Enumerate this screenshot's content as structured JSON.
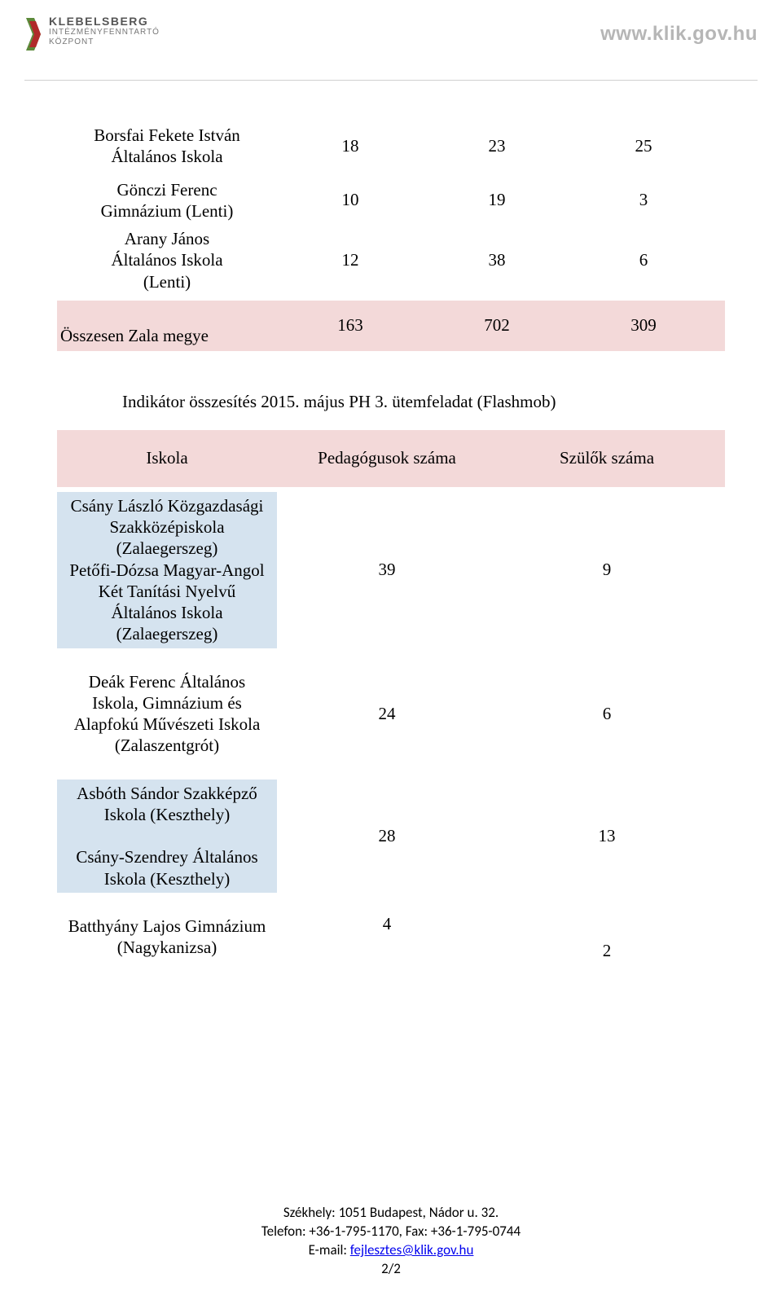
{
  "header": {
    "logo": {
      "line1": "KLEBELSBERG",
      "line2": "INTÉZMÉNYFENNTARTÓ",
      "line3": "KÖZPONT",
      "colors": {
        "green": "#5c8a3a",
        "red": "#b02a2a",
        "gray_text": "#6b6b6b"
      }
    },
    "site_url": "www.klik.gov.hu"
  },
  "table1": {
    "rows": [
      {
        "label": "Borsfai Fekete István\nÁltalános Iskola",
        "v1": "18",
        "v2": "23",
        "v3": "25"
      },
      {
        "label": "Gönczi Ferenc\nGimnázium (Lenti)",
        "v1": "10",
        "v2": "19",
        "v3": "3"
      },
      {
        "label": "Arany János\nÁltalános Iskola\n(Lenti)",
        "v1": "12",
        "v2": "38",
        "v3": "6"
      }
    ],
    "total": {
      "label": "Összesen Zala megye",
      "v1": "163",
      "v2": "702",
      "v3": "309"
    },
    "row_bg_total": "#f3d9d9"
  },
  "section_title": "Indikátor összesítés 2015. május PH 3. ütemfeladat (Flashmob)",
  "table2": {
    "headers": {
      "c1": "Iskola",
      "c2": "Pedagógusok száma",
      "c3": "Szülők száma"
    },
    "header_bg": "#f3d9d9",
    "shade_bg": "#d5e3ef",
    "rows": [
      {
        "shaded": true,
        "label": "Csány László Közgazdasági\nSzakközépiskola\n(Zalaegerszeg)\nPetőfi-Dózsa Magyar-Angol\nKét Tanítási Nyelvű\nÁltalános Iskola\n(Zalaegerszeg)",
        "v2": "39",
        "v3": "9"
      },
      {
        "shaded": false,
        "label": "Deák Ferenc Általános\nIskola, Gimnázium és\nAlapfokú Művészeti Iskola\n(Zalaszentgrót)",
        "v2": "24",
        "v3": "6"
      },
      {
        "shaded": true,
        "label": "Asbóth Sándor Szakképző\nIskola (Keszthely)\n\nCsány-Szendrey Általános\nIskola (Keszthely)",
        "v2": "28",
        "v3": "13"
      },
      {
        "shaded": false,
        "label": "Batthyány Lajos Gimnázium\n(Nagykanizsa)",
        "v2": "4",
        "v3": "2"
      }
    ]
  },
  "footer": {
    "line1": "Székhely: 1051 Budapest, Nádor u. 32.",
    "line2": "Telefon: +36-1-795-1170, Fax: +36-1-795-0744",
    "email_label": "E-mail: ",
    "email": "fejlesztes@klik.gov.hu",
    "page": "2/2"
  },
  "style": {
    "page_bg": "#ffffff",
    "font_family_body": "Times New Roman",
    "font_family_header": "Arial",
    "font_size_body_pt": 16,
    "url_color": "#b6b6b6"
  }
}
